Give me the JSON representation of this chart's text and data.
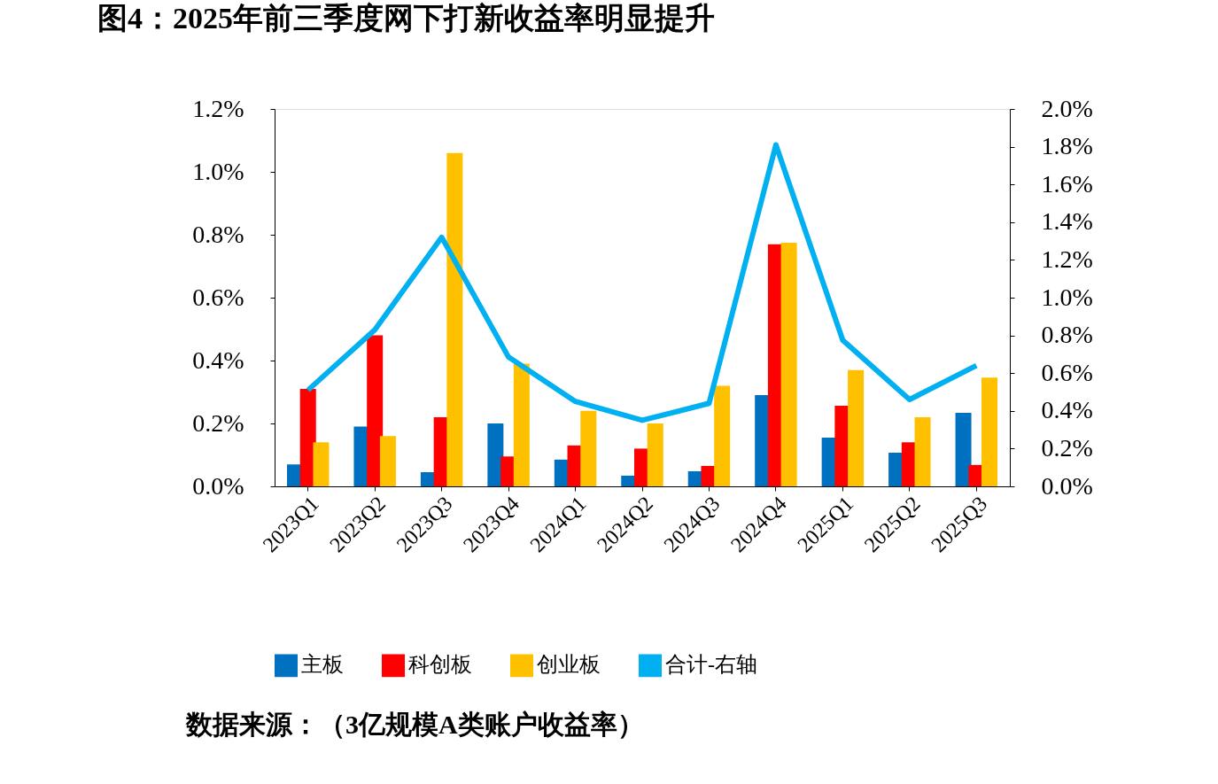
{
  "chart_data": {
    "type": "bar",
    "title": "图4：2025年前三季度网下打新收益率明显提升",
    "categories": [
      "2023Q1",
      "2023Q2",
      "2023Q3",
      "2023Q4",
      "2024Q1",
      "2024Q2",
      "2024Q3",
      "2024Q4",
      "2025Q1",
      "2025Q2",
      "2025Q3"
    ],
    "series": [
      {
        "name": "主板",
        "color": "#0070c0",
        "values": [
          0.07,
          0.19,
          0.045,
          0.2,
          0.085,
          0.034,
          0.048,
          0.29,
          0.155,
          0.107,
          0.234
        ]
      },
      {
        "name": "科创板",
        "color": "#ff0000",
        "values": [
          0.31,
          0.48,
          0.22,
          0.095,
          0.13,
          0.12,
          0.065,
          0.77,
          0.256,
          0.14,
          0.068
        ]
      },
      {
        "name": "创业板",
        "color": "#ffc000",
        "values": [
          0.14,
          0.16,
          1.06,
          0.39,
          0.24,
          0.2,
          0.32,
          0.775,
          0.37,
          0.22,
          0.346
        ]
      },
      {
        "name": "合计-右轴",
        "color": "#00b0f0",
        "type": "line",
        "axis": "y2",
        "values": [
          0.51,
          0.83,
          1.32,
          0.685,
          0.45,
          0.35,
          0.44,
          1.81,
          0.775,
          0.46,
          0.64
        ]
      }
    ],
    "ylim": [
      0,
      1.2
    ],
    "yticks": [
      {
        "value": 0,
        "label": "0.0%"
      },
      {
        "value": 0.2,
        "label": "0.2%"
      },
      {
        "value": 0.4,
        "label": "0.4%"
      },
      {
        "value": 0.6,
        "label": "0.6%"
      },
      {
        "value": 0.8,
        "label": "0.8%"
      },
      {
        "value": 1.0,
        "label": "1.0%"
      },
      {
        "value": 1.2,
        "label": "1.2%"
      }
    ],
    "y2lim": [
      0,
      2.0
    ],
    "y2ticks": [
      {
        "value": 0,
        "label": "0.0%"
      },
      {
        "value": 0.2,
        "label": "0.2%"
      },
      {
        "value": 0.4,
        "label": "0.4%"
      },
      {
        "value": 0.6,
        "label": "0.6%"
      },
      {
        "value": 0.8,
        "label": "0.8%"
      },
      {
        "value": 1.0,
        "label": "1.0%"
      },
      {
        "value": 1.2,
        "label": "1.2%"
      },
      {
        "value": 1.4,
        "label": "1.4%"
      },
      {
        "value": 1.6,
        "label": "1.6%"
      },
      {
        "value": 1.8,
        "label": "1.8%"
      },
      {
        "value": 2.0,
        "label": "2.0%"
      }
    ],
    "grid": false,
    "legend": "bottom",
    "annotations": [
      "数据来源：（3亿规模A类账户收益率）"
    ]
  }
}
